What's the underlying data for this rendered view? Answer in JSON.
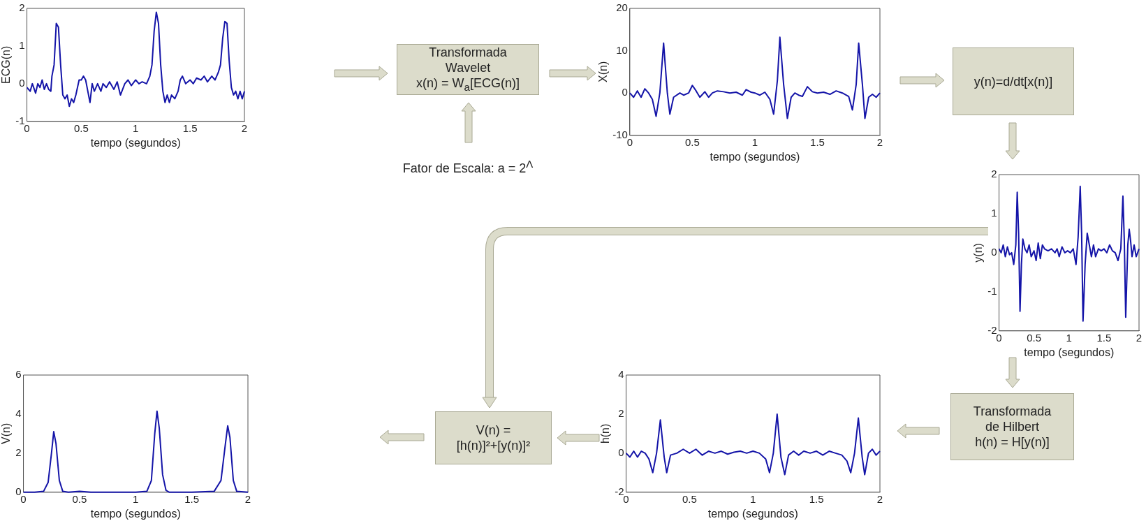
{
  "chart_data": [
    {
      "type": "line",
      "xlabel": "tempo (segundos)",
      "ylabel": "ECG(n)",
      "color": "#1414a8",
      "xlim": [
        0,
        2
      ],
      "xticks": [
        0,
        0.5,
        1,
        1.5,
        2
      ],
      "ylim": [
        -1,
        2
      ],
      "yticks": [
        -1,
        0,
        1,
        2
      ],
      "grid": false,
      "x": [
        0,
        0.03,
        0.05,
        0.08,
        0.1,
        0.12,
        0.14,
        0.16,
        0.18,
        0.2,
        0.22,
        0.23,
        0.25,
        0.27,
        0.29,
        0.31,
        0.33,
        0.35,
        0.37,
        0.39,
        0.41,
        0.43,
        0.45,
        0.48,
        0.5,
        0.52,
        0.54,
        0.56,
        0.58,
        0.6,
        0.62,
        0.65,
        0.68,
        0.7,
        0.73,
        0.76,
        0.8,
        0.83,
        0.86,
        0.9,
        0.93,
        0.96,
        1.0,
        1.03,
        1.06,
        1.1,
        1.13,
        1.15,
        1.17,
        1.19,
        1.21,
        1.23,
        1.25,
        1.27,
        1.29,
        1.31,
        1.33,
        1.36,
        1.39,
        1.41,
        1.43,
        1.46,
        1.5,
        1.53,
        1.56,
        1.6,
        1.63,
        1.66,
        1.7,
        1.73,
        1.76,
        1.78,
        1.8,
        1.82,
        1.84,
        1.86,
        1.88,
        1.9,
        1.92,
        1.94,
        1.96,
        1.98,
        2
      ],
      "values": [
        -0.1,
        -0.2,
        0,
        -0.25,
        0,
        -0.1,
        0.1,
        -0.15,
        0,
        -0.15,
        -0.2,
        0.2,
        0.5,
        1.6,
        1.5,
        0.5,
        -0.3,
        -0.4,
        -0.3,
        -0.6,
        -0.4,
        -0.5,
        -0.3,
        0.1,
        0.1,
        0.2,
        0.1,
        -0.2,
        -0.5,
        0,
        -0.2,
        0,
        -0.2,
        0,
        -0.1,
        0.05,
        -0.15,
        0.05,
        -0.3,
        0,
        0.1,
        -0.05,
        0.1,
        0,
        0.05,
        0,
        0.2,
        0.5,
        1.4,
        1.9,
        1.6,
        0.5,
        -0.2,
        -0.5,
        -0.3,
        -0.5,
        -0.3,
        -0.4,
        -0.2,
        0.1,
        0.2,
        0,
        0.1,
        0,
        0.15,
        0.1,
        0.2,
        0.05,
        0.2,
        0.1,
        0.3,
        0.5,
        1.2,
        1.65,
        1.6,
        0.6,
        -0.1,
        -0.3,
        -0.2,
        -0.4,
        -0.2,
        -0.4,
        -0.2
      ]
    },
    {
      "type": "other",
      "annotations": [
        "Transformada",
        "Wavelet",
        "x(n) = W$_{a}$[ECG(n)]",
        "Fator de Escala:  a = 2$^{Λ}$"
      ]
    },
    {
      "type": "line",
      "xlabel": "tempo (segundos)",
      "ylabel": "X(n)",
      "color": "#1414a8",
      "xlim": [
        0,
        2
      ],
      "xticks": [
        0,
        0.5,
        1,
        1.5,
        2
      ],
      "ylim": [
        -10,
        20
      ],
      "yticks": [
        -10,
        0,
        10,
        20
      ],
      "grid": false,
      "x": [
        0,
        0.03,
        0.06,
        0.09,
        0.12,
        0.15,
        0.18,
        0.21,
        0.24,
        0.27,
        0.3,
        0.32,
        0.35,
        0.4,
        0.43,
        0.47,
        0.5,
        0.53,
        0.56,
        0.6,
        0.63,
        0.66,
        0.7,
        0.75,
        0.8,
        0.85,
        0.9,
        0.93,
        0.97,
        1.0,
        1.04,
        1.08,
        1.12,
        1.15,
        1.18,
        1.2,
        1.23,
        1.26,
        1.29,
        1.32,
        1.35,
        1.38,
        1.42,
        1.46,
        1.5,
        1.55,
        1.6,
        1.65,
        1.7,
        1.75,
        1.78,
        1.81,
        1.83,
        1.86,
        1.88,
        1.91,
        1.94,
        1.97,
        2
      ],
      "values": [
        0,
        -1,
        0.5,
        -1,
        1,
        0,
        -1.5,
        -5.5,
        0,
        11.8,
        0,
        -5,
        -1,
        0,
        -0.5,
        0,
        1.8,
        0.5,
        -1,
        0.3,
        -1,
        0,
        0.5,
        0.3,
        0,
        0.2,
        -0.5,
        0.8,
        0.2,
        0,
        -0.5,
        0.2,
        -1.5,
        -5,
        3,
        13.2,
        2,
        -6,
        -1,
        0,
        -0.5,
        -0.8,
        1.5,
        0.3,
        0,
        0.2,
        -0.3,
        0.5,
        0,
        -0.8,
        -4,
        2,
        11.8,
        2,
        -6,
        -1,
        -0.3,
        -1,
        0
      ]
    },
    {
      "type": "other",
      "annotations": [
        "y(n)=d/dt[x(n)]"
      ]
    },
    {
      "type": "line",
      "xlabel": "tempo (segundos)",
      "ylabel": "y(n)",
      "color": "#1414a8",
      "xlim": [
        0,
        2
      ],
      "xticks": [
        0,
        0.5,
        1,
        1.5,
        2
      ],
      "ylim": [
        -2,
        2
      ],
      "yticks": [
        -2,
        -1,
        0,
        1,
        2
      ],
      "grid": false,
      "x": [
        0,
        0.03,
        0.06,
        0.09,
        0.12,
        0.15,
        0.18,
        0.21,
        0.24,
        0.26,
        0.28,
        0.3,
        0.32,
        0.34,
        0.37,
        0.4,
        0.43,
        0.46,
        0.5,
        0.53,
        0.56,
        0.59,
        0.62,
        0.65,
        0.7,
        0.75,
        0.8,
        0.83,
        0.86,
        0.9,
        0.94,
        0.98,
        1.02,
        1.06,
        1.1,
        1.13,
        1.16,
        1.18,
        1.2,
        1.23,
        1.26,
        1.29,
        1.32,
        1.35,
        1.38,
        1.42,
        1.46,
        1.5,
        1.54,
        1.58,
        1.62,
        1.66,
        1.7,
        1.74,
        1.77,
        1.79,
        1.81,
        1.84,
        1.86,
        1.88,
        1.9,
        1.93,
        1.96,
        2
      ],
      "values": [
        0.1,
        0,
        0.2,
        -0.1,
        0.15,
        -0.05,
        0,
        -0.3,
        0.2,
        1.55,
        0.5,
        -1.5,
        -0.3,
        0.35,
        0.1,
        0,
        0.2,
        -0.1,
        0.05,
        -0.2,
        0.25,
        -0.15,
        0.2,
        0.1,
        0.05,
        0.1,
        0,
        0.1,
        -0.1,
        0.15,
        0,
        0.05,
        0,
        0.1,
        -0.3,
        0.4,
        1.7,
        0.5,
        -1.75,
        -0.3,
        0.5,
        0.2,
        -0.1,
        0.2,
        -0.1,
        0.1,
        0.05,
        0.1,
        0,
        0.2,
        0.05,
        0,
        -0.2,
        0.1,
        1.45,
        0.3,
        -1.65,
        0.2,
        0.6,
        0.3,
        -0.1,
        0.2,
        -0.1,
        0.1
      ]
    },
    {
      "type": "line",
      "xlabel": "tempo (segundos)",
      "ylabel": "V(n)",
      "color": "#1414a8",
      "xlim": [
        0,
        2
      ],
      "xticks": [
        0,
        0.5,
        1,
        1.5,
        2
      ],
      "ylim": [
        0,
        6
      ],
      "yticks": [
        0,
        2,
        4,
        6
      ],
      "grid": false,
      "x": [
        0,
        0.1,
        0.18,
        0.22,
        0.25,
        0.27,
        0.29,
        0.32,
        0.35,
        0.4,
        0.5,
        0.6,
        0.8,
        1.0,
        1.1,
        1.14,
        1.17,
        1.19,
        1.21,
        1.24,
        1.27,
        1.3,
        1.5,
        1.7,
        1.76,
        1.8,
        1.82,
        1.84,
        1.87,
        1.9,
        2
      ],
      "values": [
        0,
        0,
        0.05,
        0.5,
        2.0,
        3.1,
        2.5,
        0.6,
        0.05,
        0,
        0.05,
        0,
        0,
        0,
        0.05,
        0.6,
        3.0,
        4.15,
        3.3,
        0.9,
        0.1,
        0,
        0,
        0.05,
        0.6,
        2.5,
        3.4,
        2.8,
        0.6,
        0.05,
        0
      ]
    },
    {
      "type": "other",
      "annotations": [
        "V(n) =",
        "[h(n)]²+[y(n)]²"
      ]
    },
    {
      "type": "line",
      "xlabel": "tempo (segundos)",
      "ylabel": "h(n)",
      "color": "#1414a8",
      "xlim": [
        0,
        2
      ],
      "xticks": [
        0,
        0.5,
        1,
        1.5,
        2
      ],
      "ylim": [
        -2,
        4
      ],
      "yticks": [
        -2,
        0,
        2,
        4
      ],
      "grid": false,
      "x": [
        0,
        0.03,
        0.06,
        0.09,
        0.12,
        0.15,
        0.18,
        0.21,
        0.24,
        0.27,
        0.3,
        0.32,
        0.35,
        0.4,
        0.45,
        0.5,
        0.55,
        0.6,
        0.65,
        0.7,
        0.75,
        0.8,
        0.85,
        0.9,
        0.95,
        1.0,
        1.05,
        1.1,
        1.13,
        1.16,
        1.19,
        1.22,
        1.25,
        1.28,
        1.32,
        1.36,
        1.4,
        1.45,
        1.5,
        1.55,
        1.6,
        1.65,
        1.7,
        1.74,
        1.77,
        1.8,
        1.83,
        1.86,
        1.88,
        1.91,
        1.94,
        1.97,
        2
      ],
      "values": [
        0,
        -0.2,
        0.1,
        -0.2,
        0.1,
        0,
        -0.3,
        -1,
        0,
        1.7,
        -0.2,
        -1,
        -0.1,
        0,
        0.2,
        0,
        0.2,
        -0.1,
        0.1,
        0,
        0.1,
        -0.05,
        0.05,
        0.1,
        0,
        0.1,
        0,
        -0.3,
        -1,
        0,
        2.0,
        -0.2,
        -1.1,
        -0.1,
        0.1,
        -0.1,
        0.1,
        0,
        0.1,
        -0.1,
        0.1,
        0,
        -0.1,
        -0.4,
        -1,
        0,
        1.8,
        -0.2,
        -1.1,
        0,
        0.2,
        -0.1,
        0.1
      ]
    },
    {
      "type": "other",
      "annotations": [
        "Transformada",
        "de Hilbert",
        "h(n) = H[y(n)]"
      ]
    }
  ]
}
